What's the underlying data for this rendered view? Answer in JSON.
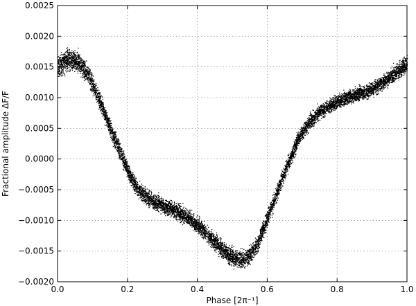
{
  "chart_data": {
    "type": "scatter",
    "title": "",
    "xlabel": "Phase [2π⁻¹]",
    "ylabel": "Fractional amplitude ΔF/F",
    "xlim": [
      0.0,
      1.0
    ],
    "ylim": [
      -0.002,
      0.0025
    ],
    "xticks": [
      0.0,
      0.2,
      0.4,
      0.6,
      0.8,
      1.0
    ],
    "xtick_labels": [
      "0.0",
      "0.2",
      "0.4",
      "0.6",
      "0.8",
      "1.0"
    ],
    "yticks": [
      -0.002,
      -0.0015,
      -0.001,
      -0.0005,
      0.0,
      0.0005,
      0.001,
      0.0015,
      0.002,
      0.0025
    ],
    "ytick_labels": [
      "−0.0020",
      "−0.0015",
      "−0.0010",
      "−0.0005",
      "0.0000",
      "0.0005",
      "0.0010",
      "0.0015",
      "0.0020",
      "0.0025"
    ],
    "grid": true,
    "legend": "none",
    "marker_color": "#000000",
    "series": [
      {
        "x": [
          0.0,
          0.03,
          0.06,
          0.09,
          0.12,
          0.15,
          0.18,
          0.21,
          0.24,
          0.27,
          0.3,
          0.33,
          0.36,
          0.39,
          0.42,
          0.45,
          0.48,
          0.51,
          0.54,
          0.57,
          0.6,
          0.63,
          0.66,
          0.69,
          0.72,
          0.75,
          0.78,
          0.81,
          0.84,
          0.87,
          0.9,
          0.93,
          0.96,
          1.0
        ],
        "y": [
          0.00152,
          0.00162,
          0.00158,
          0.00135,
          0.00095,
          0.0005,
          0.0001,
          -0.00032,
          -0.00055,
          -0.00068,
          -0.00075,
          -0.00082,
          -0.0009,
          -0.00102,
          -0.00118,
          -0.00135,
          -0.00152,
          -0.00163,
          -0.00162,
          -0.0014,
          -0.00095,
          -0.0005,
          -5e-05,
          0.00035,
          0.0006,
          0.00078,
          0.00088,
          0.00096,
          0.00103,
          0.00108,
          0.00115,
          0.00125,
          0.00138,
          0.00155
        ],
        "spread": [
          0.00018,
          0.00018,
          0.00017,
          0.00016,
          0.00015,
          0.00014,
          0.00014,
          0.00013,
          0.00013,
          0.00013,
          0.00013,
          0.00013,
          0.00013,
          0.00013,
          0.00013,
          0.00014,
          0.00014,
          0.00015,
          0.00015,
          0.00014,
          0.00014,
          0.00013,
          0.00013,
          0.00013,
          0.00012,
          0.00012,
          0.00012,
          0.00012,
          0.00012,
          0.00012,
          0.00013,
          0.00013,
          0.00014,
          0.00015
        ]
      }
    ]
  }
}
